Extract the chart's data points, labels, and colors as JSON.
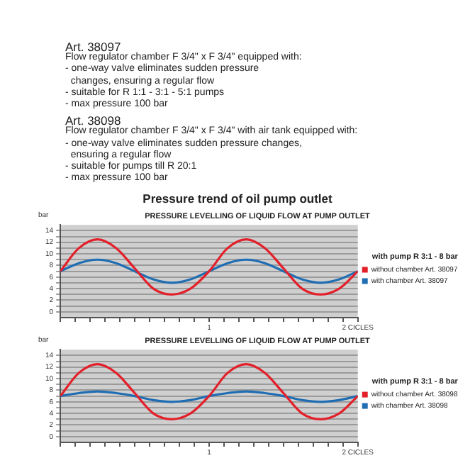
{
  "chart_data": [
    {
      "type": "line",
      "title": "PRESSURE LEVELLING OF LIQUID FLOW AT PUMP OUTLET",
      "ylabel": "bar",
      "legend_title": "with pump R 3:1 - 8 bar",
      "annotations": [
        "Art. 38097",
        "Flow regulator chamber F 3/4\" x F 3/4\" equipped with:",
        "- one-way valve eliminates sudden pressure",
        "  changes, ensuring a regular flow",
        "- suitable for R 1:1 - 3:1 - 5:1 pumps",
        "- max pressure 100 bar",
        "Art. 38098",
        "Flow regulator chamber F 3/4\" x F 3/4\" with air tank equipped with:",
        "- one-way valve eliminates sudden pressure changes,",
        "  ensuring a regular flow",
        "- suitable for pumps till R 20:1",
        "- max pressure 100 bar",
        "Pressure trend of oil pump outlet"
      ],
      "x": [
        0,
        0.125,
        0.25,
        0.375,
        0.5,
        0.625,
        0.75,
        0.875,
        1,
        1.125,
        1.25,
        1.375,
        1.5,
        1.625,
        1.75,
        1.875,
        2
      ],
      "series": [
        {
          "name": "without chamber Art. 38097",
          "color": "#e3202a",
          "values": [
            7,
            11,
            12.5,
            11,
            7.5,
            4,
            3,
            4,
            7,
            11,
            12.5,
            11,
            7.5,
            4,
            3,
            4,
            7
          ]
        },
        {
          "name": "with chamber Art. 38097",
          "color": "#1f6db3",
          "values": [
            7,
            8.4,
            9,
            8.4,
            7,
            5.6,
            5,
            5.6,
            7,
            8.4,
            9,
            8.4,
            7,
            5.6,
            5,
            5.6,
            7
          ]
        }
      ],
      "xlim": [
        0,
        2
      ],
      "xticks": [
        {
          "value": 0,
          "label": null
        },
        {
          "value": 0.1,
          "label": null
        },
        {
          "value": 0.2,
          "label": null
        },
        {
          "value": 0.3,
          "label": null
        },
        {
          "value": 0.4,
          "label": null
        },
        {
          "value": 0.5,
          "label": null
        },
        {
          "value": 0.6,
          "label": null
        },
        {
          "value": 0.7,
          "label": null
        },
        {
          "value": 0.8,
          "label": null
        },
        {
          "value": 0.9,
          "label": null
        },
        1,
        {
          "value": 1.1,
          "label": null
        },
        {
          "value": 1.2,
          "label": null
        },
        {
          "value": 1.3,
          "label": null
        },
        {
          "value": 1.4,
          "label": null
        },
        {
          "value": 1.5,
          "label": null
        },
        {
          "value": 1.6,
          "label": null
        },
        {
          "value": 1.7,
          "label": null
        },
        {
          "value": 1.8,
          "label": null
        },
        {
          "value": 1.9,
          "label": null
        },
        {
          "value": 2,
          "label": "2 CICLES"
        }
      ],
      "ylim": [
        -1,
        15
      ],
      "yticks": [
        0,
        {
          "value": 1,
          "label": null
        },
        2,
        {
          "value": 3,
          "label": null
        },
        4,
        {
          "value": 5,
          "label": null
        },
        6,
        {
          "value": 7,
          "label": null
        },
        8,
        {
          "value": 9,
          "label": null
        },
        10,
        {
          "value": 11,
          "label": null
        },
        12,
        {
          "value": 13,
          "label": null
        },
        14
      ],
      "grid": "y",
      "legend": "right",
      "marker": "none",
      "line_style": "solid"
    },
    {
      "type": "line",
      "title": "PRESSURE LEVELLING OF LIQUID FLOW AT PUMP OUTLET",
      "ylabel": "bar",
      "legend_title": "with pump R 3:1 - 8 bar",
      "x": [
        0,
        0.125,
        0.25,
        0.375,
        0.5,
        0.625,
        0.75,
        0.875,
        1,
        1.125,
        1.25,
        1.375,
        1.5,
        1.625,
        1.75,
        1.875,
        2
      ],
      "series": [
        {
          "name": "without chamber Art. 38098",
          "color": "#e3202a",
          "values": [
            7,
            11,
            12.5,
            11,
            7.5,
            4,
            3,
            4,
            7,
            11,
            12.5,
            11,
            7.5,
            4,
            3,
            4,
            7
          ]
        },
        {
          "name": "with chamber Art. 38098",
          "color": "#1f6db3",
          "values": [
            7,
            7.5,
            7.8,
            7.5,
            7,
            6.3,
            6,
            6.3,
            7,
            7.5,
            7.8,
            7.5,
            7,
            6.3,
            6,
            6.3,
            7
          ]
        }
      ],
      "xlim": [
        0,
        2
      ],
      "xticks": [
        {
          "value": 0,
          "label": null
        },
        {
          "value": 0.1,
          "label": null
        },
        {
          "value": 0.2,
          "label": null
        },
        {
          "value": 0.3,
          "label": null
        },
        {
          "value": 0.4,
          "label": null
        },
        {
          "value": 0.5,
          "label": null
        },
        {
          "value": 0.6,
          "label": null
        },
        {
          "value": 0.7,
          "label": null
        },
        {
          "value": 0.8,
          "label": null
        },
        {
          "value": 0.9,
          "label": null
        },
        1,
        {
          "value": 1.1,
          "label": null
        },
        {
          "value": 1.2,
          "label": null
        },
        {
          "value": 1.3,
          "label": null
        },
        {
          "value": 1.4,
          "label": null
        },
        {
          "value": 1.5,
          "label": null
        },
        {
          "value": 1.6,
          "label": null
        },
        {
          "value": 1.7,
          "label": null
        },
        {
          "value": 1.8,
          "label": null
        },
        {
          "value": 1.9,
          "label": null
        },
        {
          "value": 2,
          "label": "2 CICLES"
        }
      ],
      "ylim": [
        -1,
        15
      ],
      "yticks": [
        0,
        {
          "value": 1,
          "label": null
        },
        2,
        {
          "value": 3,
          "label": null
        },
        4,
        {
          "value": 5,
          "label": null
        },
        6,
        {
          "value": 7,
          "label": null
        },
        8,
        {
          "value": 9,
          "label": null
        },
        10,
        {
          "value": 11,
          "label": null
        },
        12,
        {
          "value": 13,
          "label": null
        },
        14
      ],
      "grid": "y",
      "legend": "right",
      "marker": "none",
      "line_style": "solid"
    }
  ]
}
